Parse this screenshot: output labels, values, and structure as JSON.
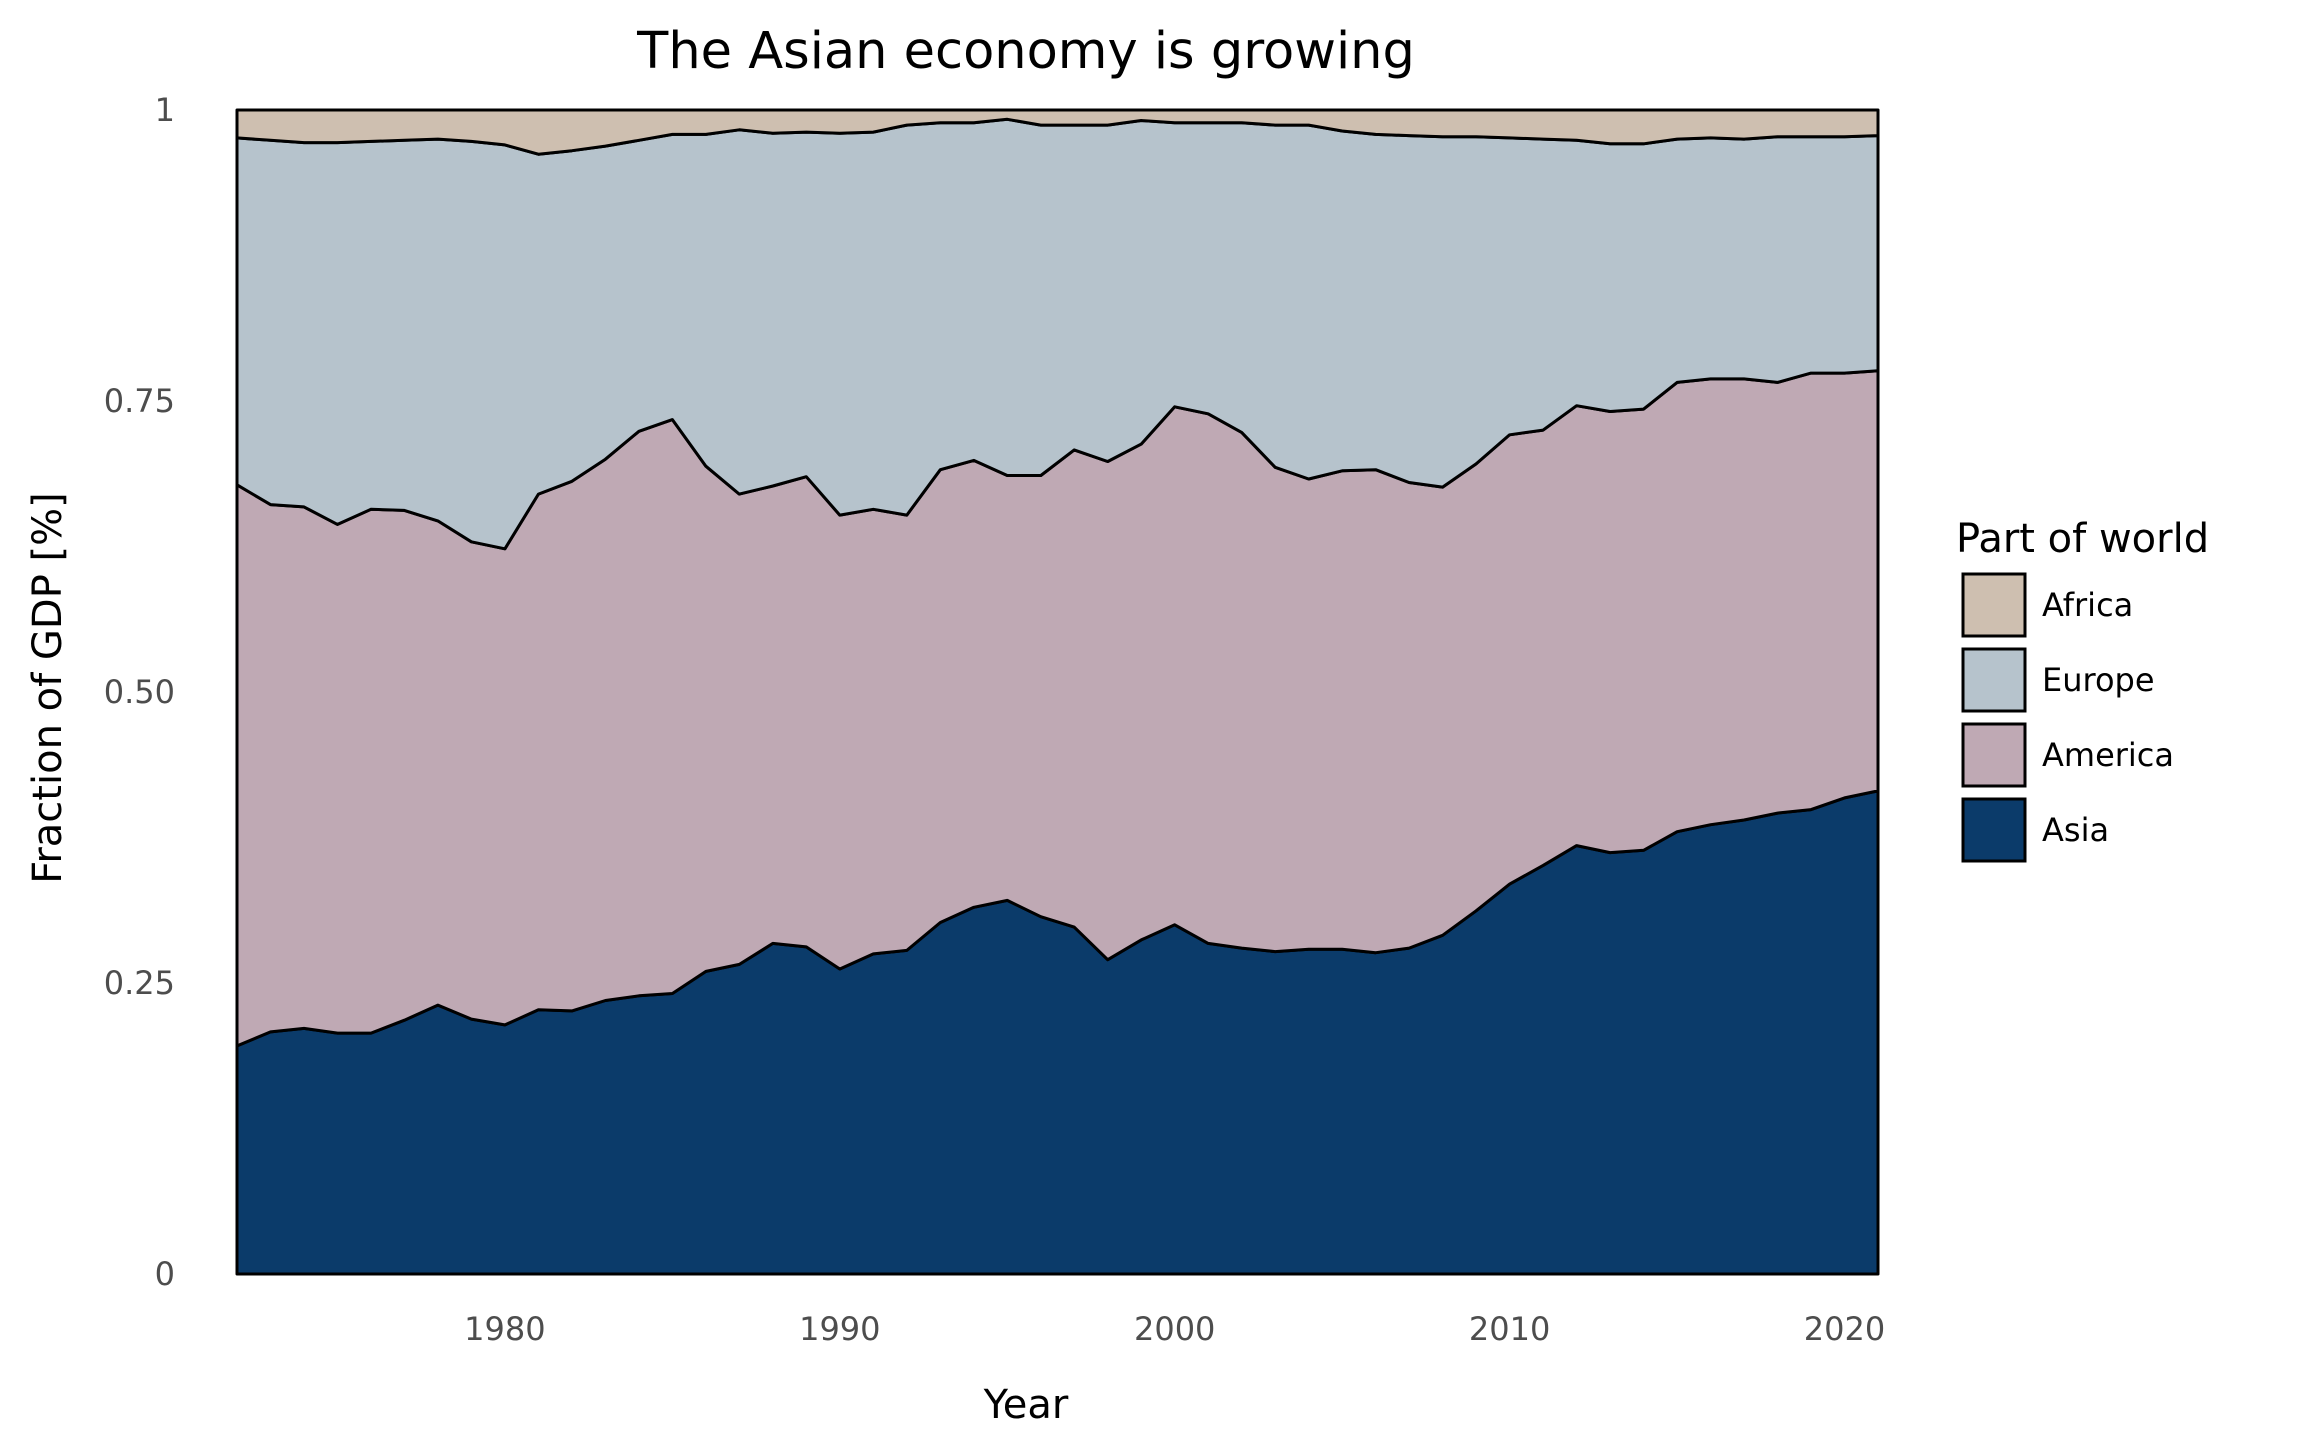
{
  "chart_data": {
    "type": "area",
    "stacked": true,
    "title": "The Asian economy is growing",
    "xlabel": "Year",
    "ylabel": "Fraction of GDP [%]",
    "xlim": [
      1972,
      2021
    ],
    "ylim": [
      0,
      1
    ],
    "x_ticks": [
      1980,
      1990,
      2000,
      2010,
      2020
    ],
    "y_ticks": [
      {
        "value": 0,
        "label": "0"
      },
      {
        "value": 0.25,
        "label": "0.25"
      },
      {
        "value": 0.5,
        "label": "0.50"
      },
      {
        "value": 0.75,
        "label": "0.75"
      },
      {
        "value": 1,
        "label": "1"
      }
    ],
    "grid": false,
    "legend": {
      "title": "Part of world",
      "placement": "right",
      "order": [
        "Africa",
        "Europe",
        "America",
        "Asia"
      ]
    },
    "x": [
      1972,
      1973,
      1974,
      1975,
      1976,
      1977,
      1978,
      1979,
      1980,
      1981,
      1982,
      1983,
      1984,
      1985,
      1986,
      1987,
      1988,
      1989,
      1990,
      1991,
      1992,
      1993,
      1994,
      1995,
      1996,
      1997,
      1998,
      1999,
      2000,
      2001,
      2002,
      2003,
      2004,
      2005,
      2006,
      2007,
      2008,
      2009,
      2010,
      2011,
      2012,
      2013,
      2014,
      2015,
      2016,
      2017,
      2018,
      2019,
      2020,
      2021
    ],
    "series": [
      {
        "name": "Asia",
        "color": "#0b3b6a",
        "values": [
          0.196,
          0.208,
          0.211,
          0.207,
          0.207,
          0.218,
          0.231,
          0.219,
          0.214,
          0.227,
          0.226,
          0.235,
          0.239,
          0.241,
          0.26,
          0.266,
          0.284,
          0.281,
          0.262,
          0.275,
          0.278,
          0.302,
          0.315,
          0.321,
          0.307,
          0.298,
          0.27,
          0.287,
          0.3,
          0.284,
          0.28,
          0.277,
          0.279,
          0.279,
          0.276,
          0.28,
          0.291,
          0.312,
          0.335,
          0.351,
          0.368,
          0.362,
          0.364,
          0.38,
          0.386,
          0.39,
          0.396,
          0.399,
          0.409,
          0.415
        ]
      },
      {
        "name": "America",
        "color": "#bfa9b4",
        "values": [
          0.482,
          0.453,
          0.448,
          0.437,
          0.45,
          0.438,
          0.416,
          0.41,
          0.409,
          0.443,
          0.455,
          0.465,
          0.485,
          0.493,
          0.434,
          0.404,
          0.393,
          0.404,
          0.39,
          0.382,
          0.374,
          0.389,
          0.384,
          0.365,
          0.379,
          0.41,
          0.428,
          0.426,
          0.445,
          0.455,
          0.443,
          0.416,
          0.404,
          0.411,
          0.415,
          0.4,
          0.385,
          0.384,
          0.386,
          0.374,
          0.378,
          0.379,
          0.379,
          0.386,
          0.383,
          0.379,
          0.37,
          0.375,
          0.365,
          0.361
        ]
      },
      {
        "name": "Europe",
        "color": "#b6c3cc",
        "values": [
          0.298,
          0.313,
          0.313,
          0.328,
          0.316,
          0.318,
          0.328,
          0.344,
          0.347,
          0.292,
          0.284,
          0.269,
          0.25,
          0.245,
          0.285,
          0.313,
          0.303,
          0.296,
          0.328,
          0.324,
          0.335,
          0.298,
          0.29,
          0.306,
          0.301,
          0.279,
          0.289,
          0.278,
          0.244,
          0.25,
          0.266,
          0.294,
          0.304,
          0.292,
          0.288,
          0.298,
          0.301,
          0.281,
          0.255,
          0.25,
          0.228,
          0.23,
          0.228,
          0.209,
          0.207,
          0.206,
          0.211,
          0.203,
          0.203,
          0.202
        ]
      },
      {
        "name": "Africa",
        "color": "#cebfb0",
        "values": [
          0.024,
          0.026,
          0.028,
          0.028,
          0.027,
          0.026,
          0.025,
          0.027,
          0.03,
          0.038,
          0.035,
          0.031,
          0.026,
          0.021,
          0.021,
          0.017,
          0.02,
          0.019,
          0.02,
          0.019,
          0.013,
          0.011,
          0.011,
          0.008,
          0.013,
          0.013,
          0.013,
          0.009,
          0.011,
          0.011,
          0.011,
          0.013,
          0.013,
          0.018,
          0.021,
          0.022,
          0.023,
          0.023,
          0.024,
          0.025,
          0.026,
          0.029,
          0.029,
          0.025,
          0.024,
          0.025,
          0.023,
          0.023,
          0.023,
          0.022
        ]
      }
    ]
  }
}
